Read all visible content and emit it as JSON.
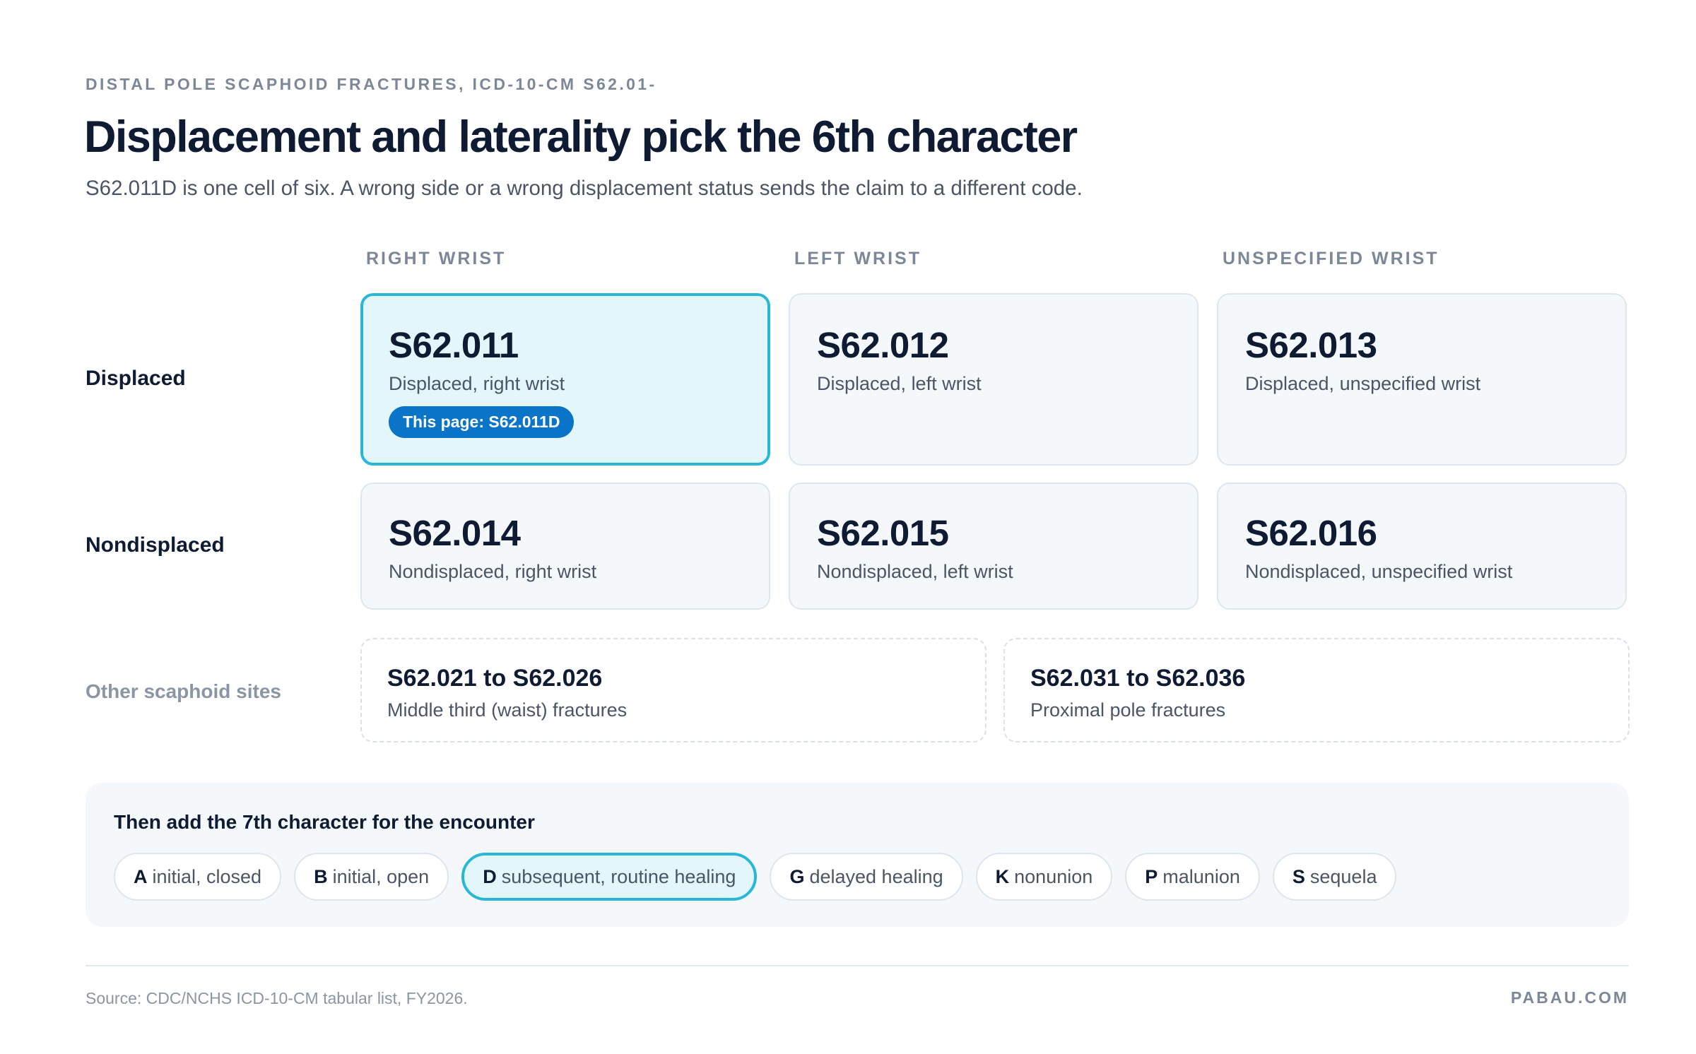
{
  "header": {
    "eyebrow": "DISTAL POLE SCAPHOID FRACTURES, ICD-10-CM S62.01-",
    "title": "Displacement and laterality pick the 6th character",
    "subtitle": "S62.011D is one cell of six. A wrong side or a wrong displacement status sends the claim to a different code."
  },
  "columns": [
    "RIGHT WRIST",
    "LEFT WRIST",
    "UNSPECIFIED WRIST"
  ],
  "rows": [
    {
      "label": "Displaced",
      "cells": [
        {
          "code": "S62.011",
          "desc": "Displaced, right wrist",
          "badge": "This page: S62.011D",
          "selected": true
        },
        {
          "code": "S62.012",
          "desc": "Displaced, left wrist"
        },
        {
          "code": "S62.013",
          "desc": "Displaced, unspecified wrist"
        }
      ]
    },
    {
      "label": "Nondisplaced",
      "cells": [
        {
          "code": "S62.014",
          "desc": "Nondisplaced, right wrist"
        },
        {
          "code": "S62.015",
          "desc": "Nondisplaced, left wrist"
        },
        {
          "code": "S62.016",
          "desc": "Nondisplaced, unspecified wrist"
        }
      ]
    }
  ],
  "other_sites": {
    "label": "Other scaphoid sites",
    "items": [
      {
        "range": "S62.021 to S62.026",
        "desc": "Middle third (waist) fractures"
      },
      {
        "range": "S62.031 to S62.036",
        "desc": "Proximal pole fractures"
      }
    ]
  },
  "seventh": {
    "title": "Then add the 7th character for the encounter",
    "chips": [
      {
        "key": "A",
        "label": "initial, closed"
      },
      {
        "key": "B",
        "label": "initial, open"
      },
      {
        "key": "D",
        "label": "subsequent, routine healing",
        "selected": true
      },
      {
        "key": "G",
        "label": "delayed healing"
      },
      {
        "key": "K",
        "label": "nonunion"
      },
      {
        "key": "P",
        "label": "malunion"
      },
      {
        "key": "S",
        "label": "sequela"
      }
    ]
  },
  "footer": {
    "source": "Source: CDC/NCHS ICD-10-CM tabular list, FY2026.",
    "brand": "PABAU.COM"
  },
  "colors": {
    "accent_border": "#29b7d8",
    "selected_bg": "#e2f6fb",
    "badge_bg": "#0a74c9",
    "cell_bg": "#f4f8fb",
    "text_dark": "#0f1b33",
    "text_muted": "#7c8798"
  }
}
